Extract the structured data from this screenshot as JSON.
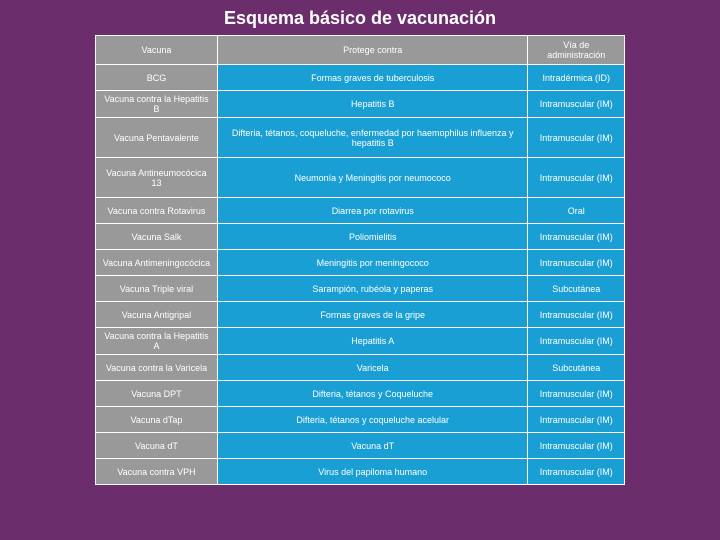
{
  "title": "Esquema básico de vacunación",
  "columns": [
    "Vacuna",
    "Protege contra",
    "Vía de administración"
  ],
  "rows": [
    [
      "BCG",
      "Formas graves de tuberculosis",
      "Intradérmica (ID)"
    ],
    [
      "Vacuna contra la Hepatitis B",
      "Hepatitis B",
      "Intramuscular (IM)"
    ],
    [
      "Vacuna Pentavalente",
      "Difteria, tétanos, coqueluche, enfermedad por haemophilus influenza y hepatitis B",
      "Intramuscular (IM)"
    ],
    [
      "Vacuna Antineumocócica 13",
      "Neumonía y Meningitis por neumococo",
      "Intramuscular (IM)"
    ],
    [
      "Vacuna contra Rotavirus",
      "Diarrea por rotavirus",
      "Oral"
    ],
    [
      "Vacuna Salk",
      "Poliomielitis",
      "Intramuscular (IM)"
    ],
    [
      "Vacuna Antimeningocócica",
      "Meningitis por meningococo",
      "Intramuscular (IM)"
    ],
    [
      "Vacuna Triple viral",
      "Sarampión, rubéola y paperas",
      "Subcutánea"
    ],
    [
      "Vacuna Antigripal",
      "Formas graves de la gripe",
      "Intramuscular (IM)"
    ],
    [
      "Vacuna contra la Hepatitis A",
      "Hepatitis A",
      "Intramuscular (IM)"
    ],
    [
      "Vacuna contra la Varicela",
      "Varicela",
      "Subcutánea"
    ],
    [
      "Vacuna DPT",
      "Difteria, tétanos y Coqueluche",
      "Intramuscular (IM)"
    ],
    [
      "Vacuna dTap",
      "Difteria, tétanos y coqueluche acelular",
      "Intramuscular (IM)"
    ],
    [
      "Vacuna dT",
      "Vacuna dT",
      "Intramuscular (IM)"
    ],
    [
      "Vacuna contra VPH",
      "Virus del papiloma humano",
      "Intramuscular (IM)"
    ]
  ],
  "tall_rows": [
    2,
    3
  ],
  "colors": {
    "background": "#6b2d6b",
    "header_bg": "#999999",
    "col1_bg": "#999999",
    "cell_bg": "#1a9fd4",
    "border": "#ffffff",
    "text": "#ffffff",
    "title": "#ffffff"
  }
}
